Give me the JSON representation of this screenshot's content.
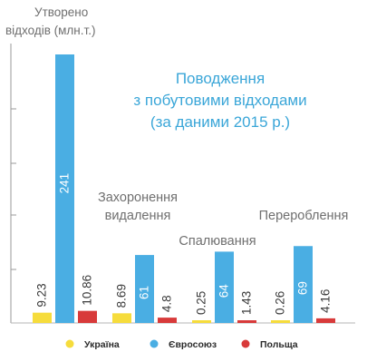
{
  "chart_data": {
    "type": "bar",
    "title": [
      "Поводження",
      "з побутовими відходами",
      "(за даними 2015 р.)"
    ],
    "ylabel": [
      "Утворено",
      "відходів (млн.т.)"
    ],
    "categories": [
      "",
      "Захоронення видалення",
      "Спалювання",
      "Перероблення"
    ],
    "series": [
      {
        "name": "Україна",
        "color": "#f6dc3c",
        "values": [
          9.23,
          8.69,
          0.25,
          0.26
        ]
      },
      {
        "name": "Євросоюз",
        "color": "#4aaee3",
        "values": [
          241,
          61,
          64,
          69
        ]
      },
      {
        "name": "Польща",
        "color": "#d83a3a",
        "values": [
          10.86,
          4.8,
          1.43,
          4.16
        ]
      }
    ],
    "ylim": [
      0,
      250
    ],
    "grid": false,
    "legend": "bottom"
  }
}
